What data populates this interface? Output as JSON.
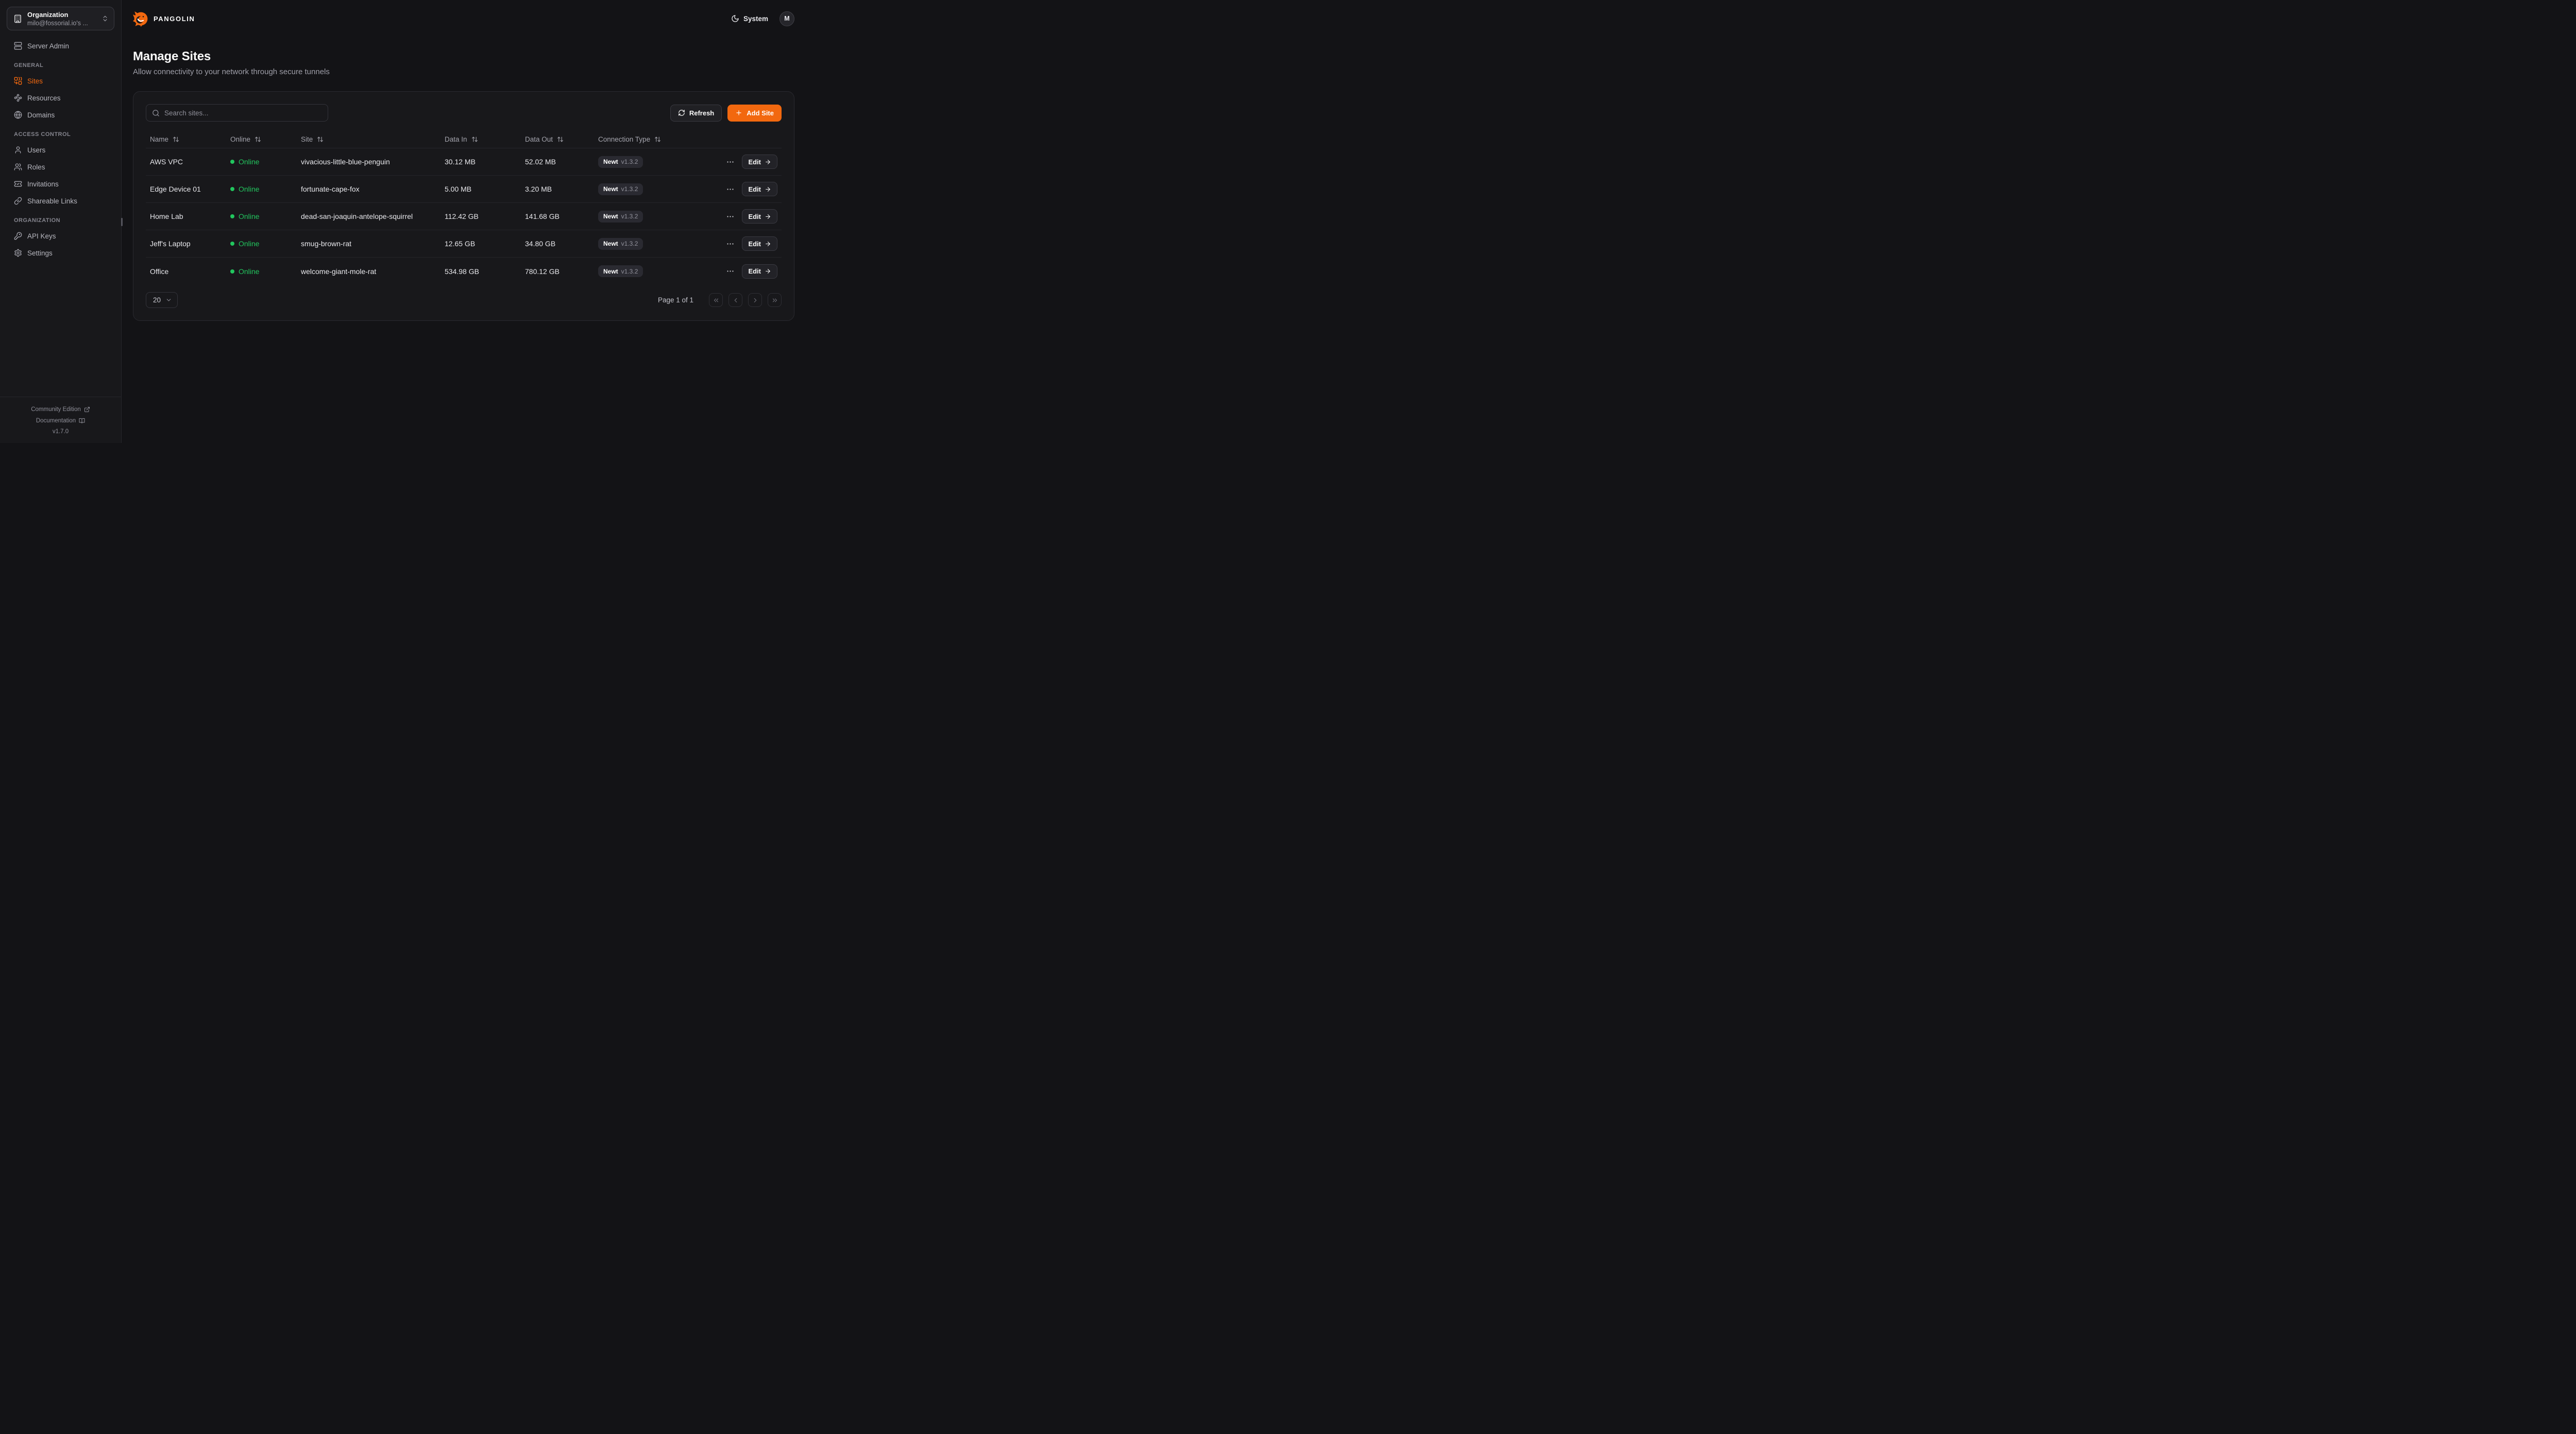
{
  "colors": {
    "accent": "#F2680F",
    "online": "#22c55e"
  },
  "header": {
    "brand": "PANGOLIN",
    "theme_label": "System",
    "avatar_initial": "M"
  },
  "sidebar": {
    "org_switcher": {
      "label": "Organization",
      "value": "milo@fossorial.io's ...",
      "icon": "building"
    },
    "top_items": [
      {
        "label": "Server Admin",
        "icon": "server",
        "active": false
      }
    ],
    "sections": [
      {
        "label": "GENERAL",
        "items": [
          {
            "label": "Sites",
            "icon": "combine",
            "active": true
          },
          {
            "label": "Resources",
            "icon": "waypoints",
            "active": false
          },
          {
            "label": "Domains",
            "icon": "globe",
            "active": false
          }
        ]
      },
      {
        "label": "ACCESS CONTROL",
        "items": [
          {
            "label": "Users",
            "icon": "user",
            "active": false
          },
          {
            "label": "Roles",
            "icon": "users",
            "active": false
          },
          {
            "label": "Invitations",
            "icon": "ticket",
            "active": false
          },
          {
            "label": "Shareable Links",
            "icon": "link",
            "active": false
          }
        ]
      },
      {
        "label": "ORGANIZATION",
        "items": [
          {
            "label": "API Keys",
            "icon": "key",
            "active": false
          },
          {
            "label": "Settings",
            "icon": "settings",
            "active": false
          }
        ]
      }
    ],
    "footer": {
      "links": [
        {
          "label": "Community Edition",
          "icon": "external-link"
        },
        {
          "label": "Documentation",
          "icon": "book-open"
        }
      ],
      "version": "v1.7.0"
    }
  },
  "page": {
    "title": "Manage Sites",
    "subtitle": "Allow connectivity to your network through secure tunnels"
  },
  "toolbar": {
    "search_placeholder": "Search sites...",
    "refresh_label": "Refresh",
    "add_site_label": "Add Site"
  },
  "table": {
    "edit_label": "Edit",
    "columns": [
      {
        "label": "Name",
        "sortable": true
      },
      {
        "label": "Online",
        "sortable": true
      },
      {
        "label": "Site",
        "sortable": true
      },
      {
        "label": "Data In",
        "sortable": true
      },
      {
        "label": "Data Out",
        "sortable": true
      },
      {
        "label": "Connection Type",
        "sortable": true
      },
      {
        "label": "",
        "sortable": false
      }
    ],
    "rows": [
      {
        "name": "AWS VPC",
        "status": "Online",
        "site": "vivacious-little-blue-penguin",
        "data_in": "30.12 MB",
        "data_out": "52.02 MB",
        "connection": {
          "type": "Newt",
          "version": "v1.3.2"
        }
      },
      {
        "name": "Edge Device 01",
        "status": "Online",
        "site": "fortunate-cape-fox",
        "data_in": "5.00 MB",
        "data_out": "3.20 MB",
        "connection": {
          "type": "Newt",
          "version": "v1.3.2"
        }
      },
      {
        "name": "Home Lab",
        "status": "Online",
        "site": "dead-san-joaquin-antelope-squirrel",
        "data_in": "112.42 GB",
        "data_out": "141.68 GB",
        "connection": {
          "type": "Newt",
          "version": "v1.3.2"
        }
      },
      {
        "name": "Jeff's Laptop",
        "status": "Online",
        "site": "smug-brown-rat",
        "data_in": "12.65 GB",
        "data_out": "34.80 GB",
        "connection": {
          "type": "Newt",
          "version": "v1.3.2"
        }
      },
      {
        "name": "Office",
        "status": "Online",
        "site": "welcome-giant-mole-rat",
        "data_in": "534.98 GB",
        "data_out": "780.12 GB",
        "connection": {
          "type": "Newt",
          "version": "v1.3.2"
        }
      }
    ]
  },
  "pagination": {
    "page_size": "20",
    "page_text": "Page 1 of 1"
  }
}
